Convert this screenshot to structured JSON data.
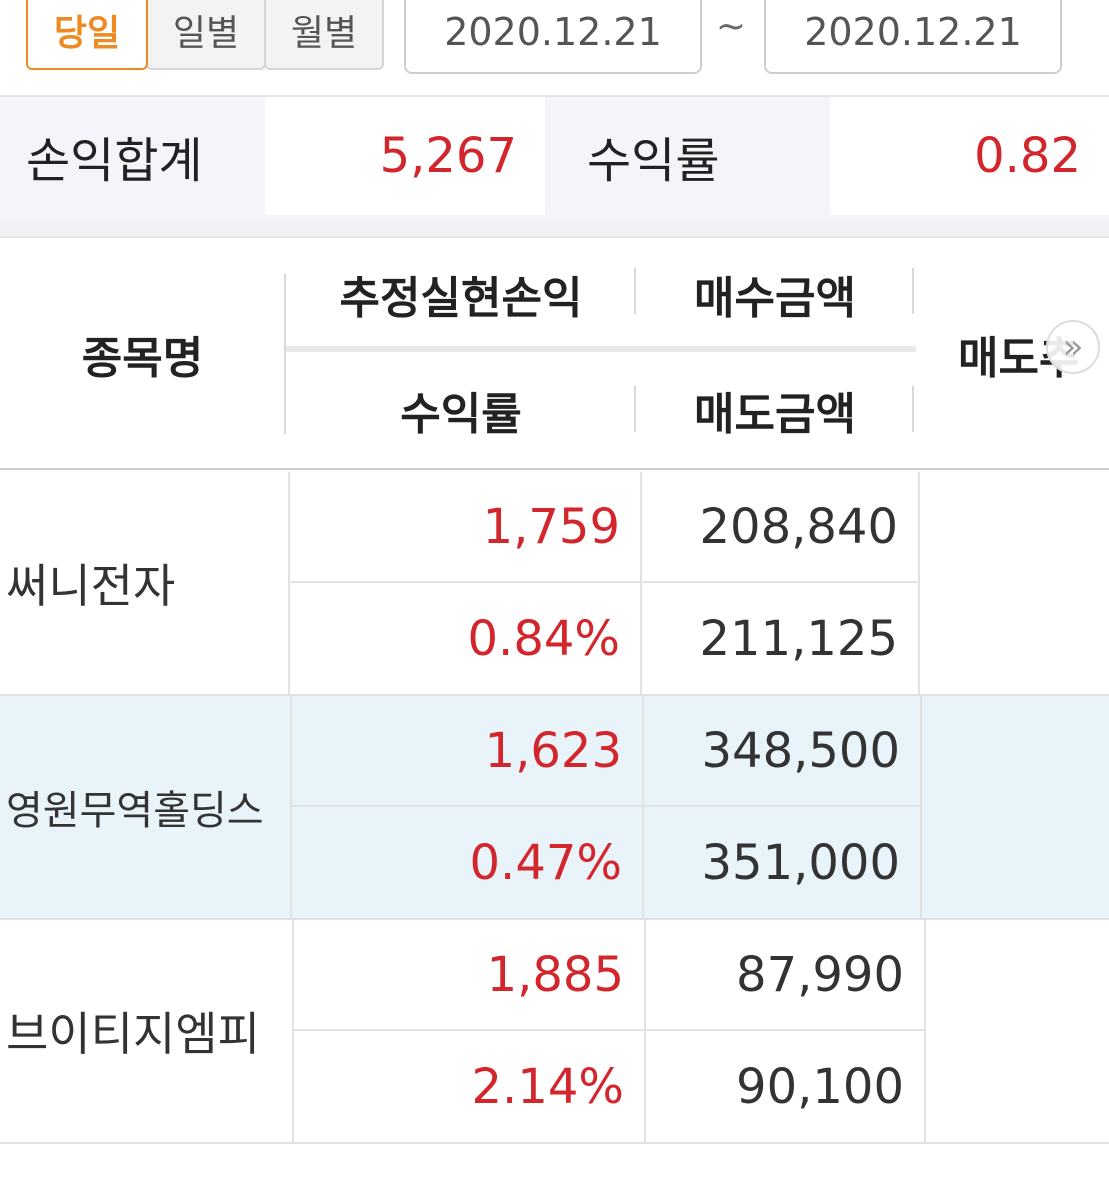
{
  "filter": {
    "periods": [
      "당일",
      "일별",
      "월별"
    ],
    "active_period": "당일",
    "date_from": "2020.12.21",
    "tilde": "~",
    "date_to": "2020.12.21"
  },
  "summary": {
    "profit_label": "손익합계",
    "profit_value": "5,267",
    "return_label": "수익률",
    "return_value": "0.82"
  },
  "table": {
    "headers": {
      "name": "종목명",
      "realized_pl": "추정실현손익",
      "buy_amount": "매수금액",
      "return_rate": "수익률",
      "sell_amount": "매도금액",
      "next_col_partial": "매도추"
    },
    "rows": [
      {
        "name": "써니전자",
        "pl": "1,759",
        "rate": "0.84%",
        "buy": "208,840",
        "sell": "211,125"
      },
      {
        "name": "영원무역홀딩스",
        "pl": "1,623",
        "rate": "0.47%",
        "buy": "348,500",
        "sell": "351,000"
      },
      {
        "name": "브이티지엠피",
        "pl": "1,885",
        "rate": "2.14%",
        "buy": "87,990",
        "sell": "90,100"
      }
    ]
  },
  "colors": {
    "accent": "#ee8a22",
    "positive": "#d3262c",
    "row_highlight": "#e9f3fa"
  }
}
